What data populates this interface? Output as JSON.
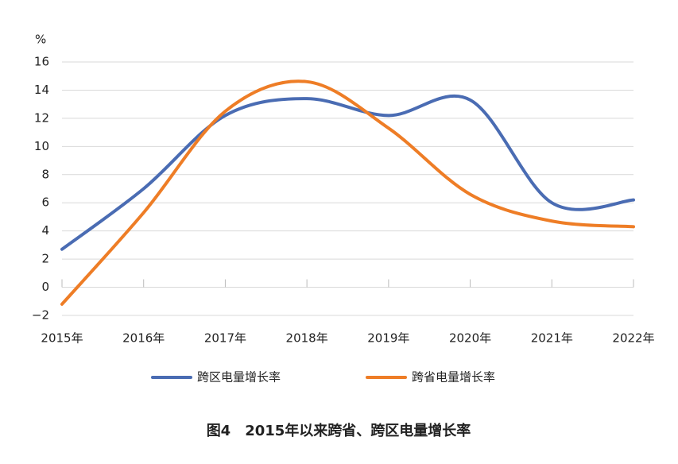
{
  "chart_data": {
    "type": "line",
    "title": "图4　2015年以来跨省、跨区电量增长率",
    "y_label": "%",
    "categories": [
      "2015年",
      "2016年",
      "2017年",
      "2018年",
      "2019年",
      "2020年",
      "2021年",
      "2022年"
    ],
    "series": [
      {
        "name": "跨区电量增长率",
        "color": "#4a6cb3",
        "values": [
          2.7,
          7.0,
          12.2,
          13.4,
          12.2,
          13.3,
          6.0,
          6.2
        ]
      },
      {
        "name": "跨省电量增长率",
        "color": "#ee7d26",
        "values": [
          -1.2,
          5.3,
          12.5,
          14.6,
          11.3,
          6.6,
          4.7,
          4.3
        ]
      }
    ],
    "ylim": [
      -2,
      16
    ],
    "yticks": [
      {
        "value": -2,
        "label": "−2"
      },
      0,
      2,
      4,
      6,
      8,
      10,
      12,
      14,
      16
    ],
    "grid": true
  }
}
